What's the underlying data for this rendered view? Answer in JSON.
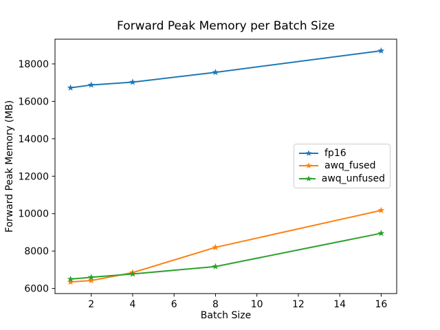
{
  "chart_data": {
    "type": "line",
    "title": "Forward Peak Memory per Batch Size",
    "xlabel": "Batch Size",
    "ylabel": "Forward Peak Memory (MB)",
    "x": [
      1,
      2,
      4,
      8,
      16
    ],
    "series": [
      {
        "name": "fp16",
        "color": "#1f77b4",
        "values": [
          16725,
          16875,
          17025,
          17550,
          18700
        ]
      },
      {
        "name": "awq_fused",
        "color": "#ff7f0e",
        "values": [
          6350,
          6425,
          6850,
          8200,
          10175
        ]
      },
      {
        "name": "awq_unfused",
        "color": "#2ca02c",
        "values": [
          6500,
          6600,
          6775,
          7175,
          8950
        ]
      }
    ],
    "xticks": [
      2,
      4,
      6,
      8,
      10,
      12,
      14,
      16
    ],
    "yticks": [
      6000,
      8000,
      10000,
      12000,
      14000,
      16000,
      18000
    ],
    "xlim": [
      0.25,
      16.75
    ],
    "ylim": [
      5730,
      19320
    ],
    "marker": "star",
    "grid": false,
    "legend_position": "center right",
    "axis_color": "#000000",
    "background_color": "#ffffff"
  }
}
